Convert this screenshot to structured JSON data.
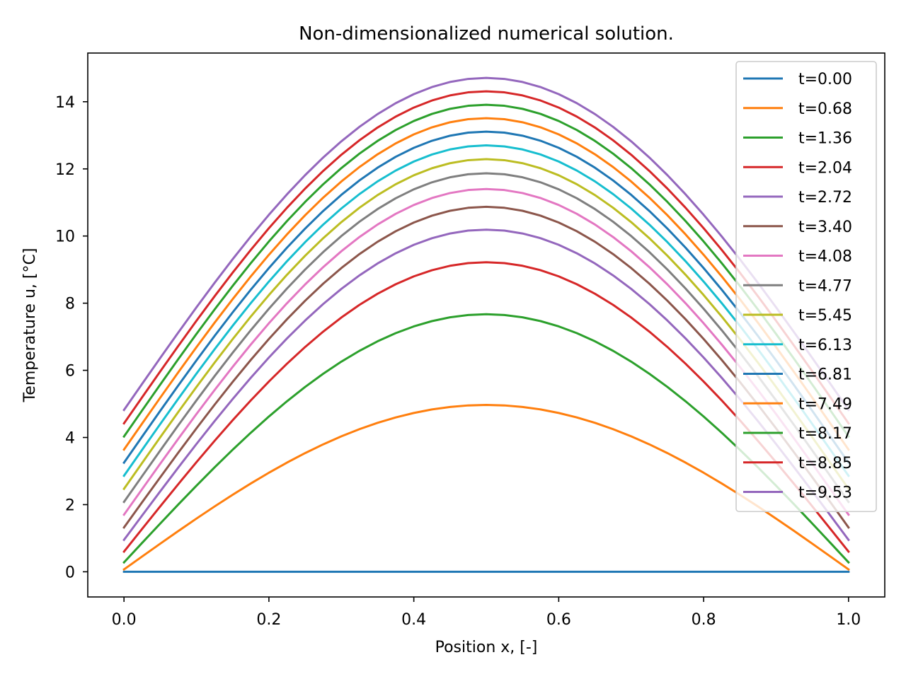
{
  "chart_data": {
    "type": "line",
    "title": "Non-dimensionalized numerical solution.",
    "xlabel": "Position x, [-]",
    "ylabel": "Temperature u, [°C]",
    "xlim": [
      -0.05,
      1.05
    ],
    "ylim": [
      -0.75,
      15.45
    ],
    "x_ticks": [
      0.0,
      0.2,
      0.4,
      0.6,
      0.8,
      1.0
    ],
    "x_tick_labels": [
      "0.0",
      "0.2",
      "0.4",
      "0.6",
      "0.8",
      "1.0"
    ],
    "y_ticks": [
      0,
      2,
      4,
      6,
      8,
      10,
      12,
      14
    ],
    "y_tick_labels": [
      "0",
      "2",
      "4",
      "6",
      "8",
      "10",
      "12",
      "14"
    ],
    "grid": false,
    "legend_position": "top-right",
    "x_points": 41,
    "series": [
      {
        "name": "t=0.00",
        "color": "#1f77b4",
        "end": 0.0,
        "peak": 0.0
      },
      {
        "name": "t=0.68",
        "color": "#ff7f0e",
        "end": 0.07,
        "peak": 4.97
      },
      {
        "name": "t=1.36",
        "color": "#2ca02c",
        "end": 0.28,
        "peak": 7.67
      },
      {
        "name": "t=2.04",
        "color": "#d62728",
        "end": 0.6,
        "peak": 9.22
      },
      {
        "name": "t=2.72",
        "color": "#9467bd",
        "end": 0.95,
        "peak": 10.19
      },
      {
        "name": "t=3.40",
        "color": "#8c564b",
        "end": 1.32,
        "peak": 10.87
      },
      {
        "name": "t=4.08",
        "color": "#e377c2",
        "end": 1.7,
        "peak": 11.4
      },
      {
        "name": "t=4.77",
        "color": "#7f7f7f",
        "end": 2.08,
        "peak": 11.87
      },
      {
        "name": "t=5.45",
        "color": "#bcbd22",
        "end": 2.47,
        "peak": 12.29
      },
      {
        "name": "t=6.13",
        "color": "#17becf",
        "end": 2.86,
        "peak": 12.7
      },
      {
        "name": "t=6.81",
        "color": "#1f77b4",
        "end": 3.25,
        "peak": 13.11
      },
      {
        "name": "t=7.49",
        "color": "#ff7f0e",
        "end": 3.64,
        "peak": 13.51
      },
      {
        "name": "t=8.17",
        "color": "#2ca02c",
        "end": 4.03,
        "peak": 13.91
      },
      {
        "name": "t=8.85",
        "color": "#d62728",
        "end": 4.42,
        "peak": 14.31
      },
      {
        "name": "t=9.53",
        "color": "#9467bd",
        "end": 4.82,
        "peak": 14.71
      }
    ]
  }
}
